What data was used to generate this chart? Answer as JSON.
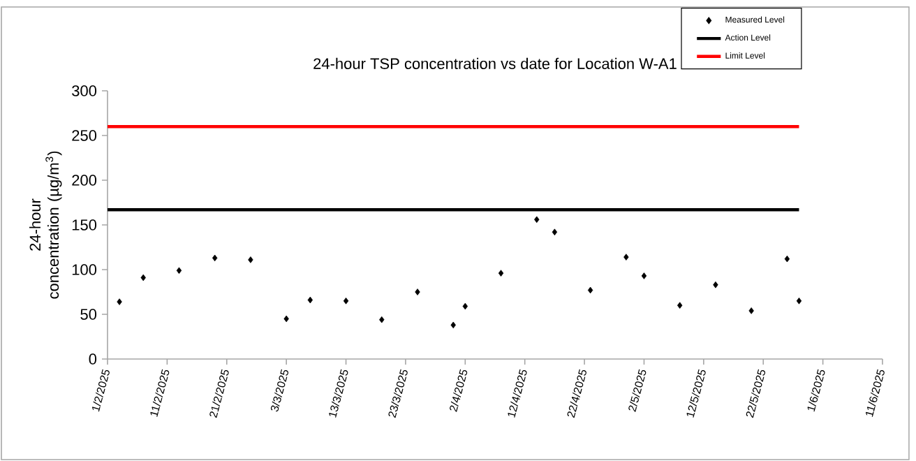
{
  "chart_data": {
    "type": "scatter",
    "title": "24-hour TSP concentration vs date for Location W-A1",
    "ylabel": "24-hour concentration (µg/m$^{3}$)",
    "series": [
      {
        "name": "Measured Level",
        "color": "#000000",
        "marker": "diamond",
        "x": [
          "2025-02-03",
          "2025-02-07",
          "2025-02-13",
          "2025-02-19",
          "2025-02-25",
          "2025-03-03",
          "2025-03-07",
          "2025-03-13",
          "2025-03-19",
          "2025-03-25",
          "2025-03-31",
          "2025-04-02",
          "2025-04-08",
          "2025-04-14",
          "2025-04-17",
          "2025-04-23",
          "2025-04-29",
          "2025-05-02",
          "2025-05-08",
          "2025-05-14",
          "2025-05-20",
          "2025-05-26",
          "2025-05-28"
        ],
        "values": [
          64,
          91,
          99,
          113,
          111,
          45,
          66,
          65,
          44,
          75,
          38,
          59,
          96,
          156,
          142,
          77,
          114,
          93,
          60,
          83,
          54,
          112,
          65
        ]
      },
      {
        "name": "Action Level",
        "type": "line",
        "color": "#000000",
        "x": [
          "2025-02-01",
          "2025-05-28"
        ],
        "values": [
          167,
          167
        ]
      },
      {
        "name": "Limit Level",
        "type": "line",
        "color": "#ff0000",
        "x": [
          "2025-02-01",
          "2025-05-28"
        ],
        "values": [
          260,
          260
        ]
      }
    ],
    "xlim": [
      "2025-02-01",
      "2025-06-11"
    ],
    "xticks": [
      {
        "value": "2025-02-01",
        "label": "1/2/2025"
      },
      {
        "value": "2025-02-11",
        "label": "11/2/2025"
      },
      {
        "value": "2025-02-21",
        "label": "21/2/2025"
      },
      {
        "value": "2025-03-03",
        "label": "3/3/2025"
      },
      {
        "value": "2025-03-13",
        "label": "13/3/2025"
      },
      {
        "value": "2025-03-23",
        "label": "23/3/2025"
      },
      {
        "value": "2025-04-02",
        "label": "2/4/2025"
      },
      {
        "value": "2025-04-12",
        "label": "12/4/2025"
      },
      {
        "value": "2025-04-22",
        "label": "22/4/2025"
      },
      {
        "value": "2025-05-02",
        "label": "2/5/2025"
      },
      {
        "value": "2025-05-12",
        "label": "12/5/2025"
      },
      {
        "value": "2025-05-22",
        "label": "22/5/2025"
      },
      {
        "value": "2025-06-01",
        "label": "1/6/2025"
      },
      {
        "value": "2025-06-11",
        "label": "11/6/2025"
      }
    ],
    "ylim": [
      0,
      300
    ],
    "yticks": [
      0,
      50,
      100,
      150,
      200,
      250,
      300
    ],
    "grid": false,
    "legend": "top right"
  }
}
